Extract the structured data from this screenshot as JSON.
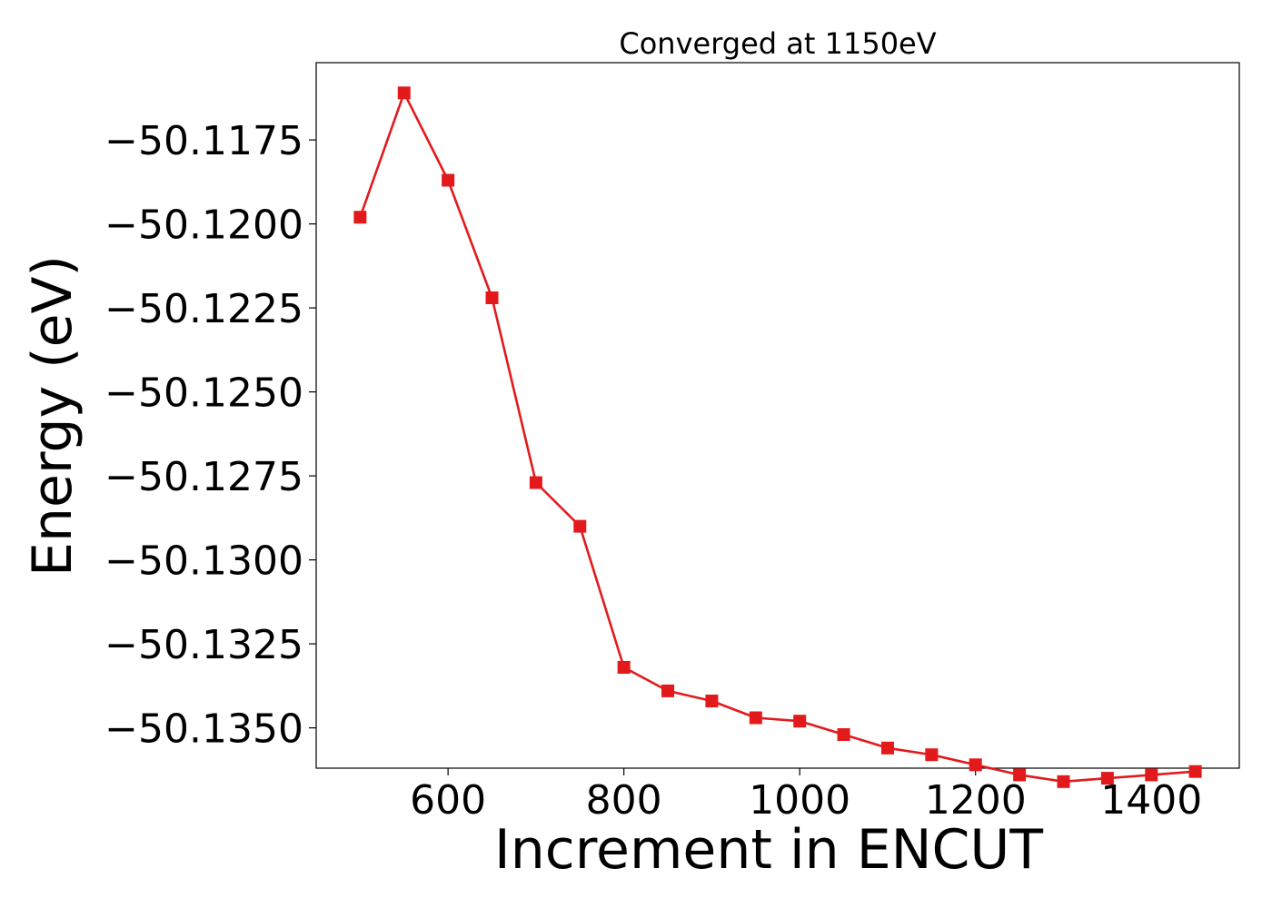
{
  "chart_data": {
    "type": "line",
    "title": "Converged at 1150eV",
    "xlabel": "Increment in ENCUT",
    "ylabel": "Energy (eV)",
    "xlim": [
      450,
      1500
    ],
    "ylim": [
      -50.1362,
      -50.1152
    ],
    "xticks": [
      600,
      800,
      1000,
      1200,
      1400
    ],
    "xtick_labels": [
      "600",
      "800",
      "1000",
      "1200",
      "1400"
    ],
    "yticks": [
      -50.1175,
      -50.12,
      -50.1225,
      -50.125,
      -50.1275,
      -50.13,
      -50.1325,
      -50.135
    ],
    "ytick_labels": [
      "−50.1175",
      "−50.1200",
      "−50.1225",
      "−50.1250",
      "−50.1275",
      "−50.1300",
      "−50.1325",
      "−50.1350"
    ],
    "grid": false,
    "series": [
      {
        "color": "#e31a1c",
        "marker": "square",
        "x": [
          500,
          550,
          600,
          650,
          700,
          750,
          800,
          850,
          900,
          950,
          1000,
          1050,
          1100,
          1150,
          1200,
          1250,
          1300,
          1350,
          1400,
          1450
        ],
        "y": [
          -50.1198,
          -50.1161,
          -50.1187,
          -50.1222,
          -50.1277,
          -50.129,
          -50.1332,
          -50.1339,
          -50.1342,
          -50.1347,
          -50.1348,
          -50.1352,
          -50.1356,
          -50.1358,
          -50.1361,
          -50.1364,
          -50.1366,
          -50.1365,
          -50.1364,
          -50.1363
        ]
      }
    ]
  }
}
